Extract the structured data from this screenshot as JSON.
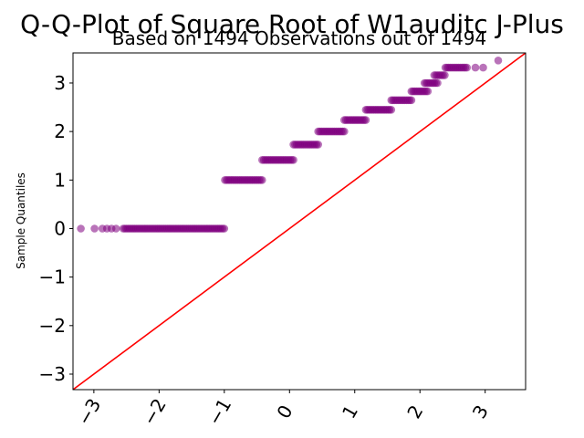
{
  "chart_data": {
    "type": "scatter",
    "title": "Q-Q-Plot of Square Root of W1auditc J-Plus",
    "subtitle": "Based on 1494 Observations out of 1494",
    "xlabel": "",
    "ylabel": "Sample Quantiles",
    "xlim": [
      -3.32,
      3.62
    ],
    "ylim": [
      -3.32,
      3.62
    ],
    "xticks": [
      -3,
      -2,
      -1,
      0,
      1,
      2,
      3
    ],
    "yticks": [
      -3,
      -2,
      -1,
      0,
      1,
      2,
      3
    ],
    "xtick_labels": [
      "−3",
      "−2",
      "−1",
      "0",
      "1",
      "2",
      "3"
    ],
    "ytick_labels": [
      "−3",
      "−2",
      "−1",
      "0",
      "1",
      "2",
      "3"
    ],
    "grid": false,
    "reference_line": {
      "slope": 1,
      "intercept": 0,
      "color": "#ff0000"
    },
    "point_color": "#800080",
    "steps": [
      {
        "y": 0.0,
        "x_from": -2.55,
        "x_to": -1.0,
        "outliers_x": [
          -3.2,
          -2.99,
          -2.87,
          -2.8,
          -2.73,
          -2.66
        ]
      },
      {
        "y": 1.0,
        "x_from": -0.99,
        "x_to": -0.42
      },
      {
        "y": 1.414,
        "x_from": -0.42,
        "x_to": 0.06
      },
      {
        "y": 1.732,
        "x_from": 0.06,
        "x_to": 0.44
      },
      {
        "y": 2.0,
        "x_from": 0.44,
        "x_to": 0.84
      },
      {
        "y": 2.236,
        "x_from": 0.84,
        "x_to": 1.17
      },
      {
        "y": 2.449,
        "x_from": 1.17,
        "x_to": 1.56
      },
      {
        "y": 2.646,
        "x_from": 1.56,
        "x_to": 1.87
      },
      {
        "y": 2.828,
        "x_from": 1.87,
        "x_to": 2.12
      },
      {
        "y": 3.0,
        "x_from": 2.07,
        "x_to": 2.27
      },
      {
        "y": 3.162,
        "x_from": 2.22,
        "x_to": 2.38
      },
      {
        "y": 3.317,
        "x_from": 2.39,
        "x_to": 2.72,
        "outliers_x": [
          2.85,
          2.97
        ]
      },
      {
        "y": 3.464,
        "outliers_x": [
          3.2
        ]
      }
    ]
  }
}
